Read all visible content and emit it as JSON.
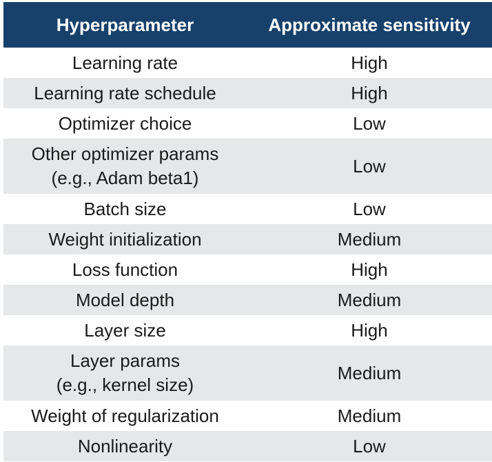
{
  "table": {
    "headers": [
      "Hyperparameter",
      "Approximate sensitivity"
    ],
    "rows": [
      {
        "param": [
          "Learning rate"
        ],
        "sensitivity": "High"
      },
      {
        "param": [
          "Learning rate schedule"
        ],
        "sensitivity": "High"
      },
      {
        "param": [
          "Optimizer choice"
        ],
        "sensitivity": "Low"
      },
      {
        "param": [
          "Other optimizer params",
          "(e.g., Adam beta1)"
        ],
        "sensitivity": "Low"
      },
      {
        "param": [
          "Batch size"
        ],
        "sensitivity": "Low"
      },
      {
        "param": [
          "Weight initialization"
        ],
        "sensitivity": "Medium"
      },
      {
        "param": [
          "Loss function"
        ],
        "sensitivity": "High"
      },
      {
        "param": [
          "Model depth"
        ],
        "sensitivity": "Medium"
      },
      {
        "param": [
          "Layer size"
        ],
        "sensitivity": "High"
      },
      {
        "param": [
          "Layer params",
          "(e.g., kernel size)"
        ],
        "sensitivity": "Medium"
      },
      {
        "param": [
          "Weight of regularization"
        ],
        "sensitivity": "Medium"
      },
      {
        "param": [
          "Nonlinearity"
        ],
        "sensitivity": "Low"
      }
    ],
    "colors": {
      "header_bg": "#17406b",
      "header_text": "#ffffff",
      "stripe_bg": "#e6e7e8",
      "body_text": "#1a1a1a"
    }
  }
}
